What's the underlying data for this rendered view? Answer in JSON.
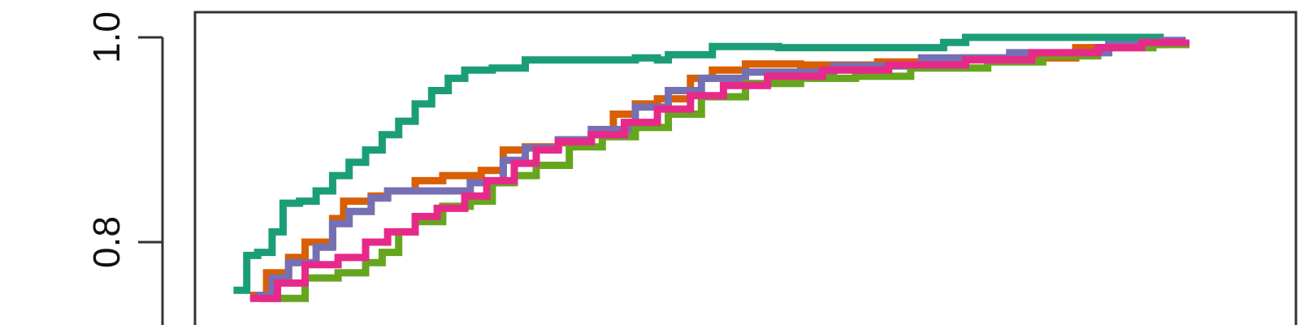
{
  "chart_data": {
    "type": "line",
    "title": "",
    "xlabel": "",
    "ylabel": "",
    "ylim": [
      0.73,
      1.02
    ],
    "xlim": [
      0,
      1
    ],
    "grid": false,
    "y_ticks": [
      {
        "value": 0.8,
        "label": "0.8"
      },
      {
        "value": 1.0,
        "label": "1.0"
      }
    ],
    "series": [
      {
        "color": "#1b9e77",
        "step": true,
        "points": [
          [
            0.035,
            0.753
          ],
          [
            0.047,
            0.787
          ],
          [
            0.057,
            0.79
          ],
          [
            0.07,
            0.81
          ],
          [
            0.08,
            0.838
          ],
          [
            0.095,
            0.84
          ],
          [
            0.11,
            0.85
          ],
          [
            0.125,
            0.865
          ],
          [
            0.14,
            0.878
          ],
          [
            0.155,
            0.89
          ],
          [
            0.17,
            0.905
          ],
          [
            0.185,
            0.918
          ],
          [
            0.2,
            0.935
          ],
          [
            0.215,
            0.948
          ],
          [
            0.23,
            0.96
          ],
          [
            0.245,
            0.968
          ],
          [
            0.27,
            0.97
          ],
          [
            0.3,
            0.978
          ],
          [
            0.4,
            0.98
          ],
          [
            0.42,
            0.978
          ],
          [
            0.43,
            0.983
          ],
          [
            0.47,
            0.991
          ],
          [
            0.53,
            0.99
          ],
          [
            0.68,
            0.995
          ],
          [
            0.7,
            1.0
          ],
          [
            0.75,
            1.0
          ],
          [
            0.88,
            1.0
          ]
        ]
      },
      {
        "color": "#d95f02",
        "step": true,
        "points": [
          [
            0.05,
            0.748
          ],
          [
            0.065,
            0.77
          ],
          [
            0.085,
            0.785
          ],
          [
            0.1,
            0.8
          ],
          [
            0.125,
            0.823
          ],
          [
            0.135,
            0.84
          ],
          [
            0.16,
            0.845
          ],
          [
            0.175,
            0.85
          ],
          [
            0.2,
            0.86
          ],
          [
            0.225,
            0.865
          ],
          [
            0.26,
            0.87
          ],
          [
            0.28,
            0.89
          ],
          [
            0.3,
            0.893
          ],
          [
            0.33,
            0.897
          ],
          [
            0.36,
            0.905
          ],
          [
            0.38,
            0.925
          ],
          [
            0.4,
            0.935
          ],
          [
            0.42,
            0.94
          ],
          [
            0.45,
            0.96
          ],
          [
            0.47,
            0.968
          ],
          [
            0.5,
            0.974
          ],
          [
            0.55,
            0.973
          ],
          [
            0.62,
            0.976
          ],
          [
            0.7,
            0.98
          ],
          [
            0.8,
            0.99
          ],
          [
            0.84,
            0.99
          ],
          [
            0.87,
            0.993
          ],
          [
            0.9,
            0.998
          ]
        ]
      },
      {
        "color": "#7570b3",
        "step": true,
        "points": [
          [
            0.055,
            0.748
          ],
          [
            0.07,
            0.765
          ],
          [
            0.085,
            0.78
          ],
          [
            0.11,
            0.795
          ],
          [
            0.125,
            0.818
          ],
          [
            0.14,
            0.83
          ],
          [
            0.16,
            0.843
          ],
          [
            0.175,
            0.85
          ],
          [
            0.21,
            0.85
          ],
          [
            0.25,
            0.858
          ],
          [
            0.28,
            0.88
          ],
          [
            0.3,
            0.892
          ],
          [
            0.33,
            0.9
          ],
          [
            0.36,
            0.91
          ],
          [
            0.4,
            0.932
          ],
          [
            0.43,
            0.948
          ],
          [
            0.46,
            0.96
          ],
          [
            0.5,
            0.966
          ],
          [
            0.58,
            0.972
          ],
          [
            0.66,
            0.98
          ],
          [
            0.74,
            0.985
          ],
          [
            0.83,
            0.993
          ],
          [
            0.88,
            0.997
          ],
          [
            0.9,
            0.998
          ]
        ]
      },
      {
        "color": "#66a61e",
        "step": true,
        "points": [
          [
            0.06,
            0.745
          ],
          [
            0.085,
            0.745
          ],
          [
            0.1,
            0.765
          ],
          [
            0.13,
            0.77
          ],
          [
            0.155,
            0.78
          ],
          [
            0.17,
            0.79
          ],
          [
            0.185,
            0.81
          ],
          [
            0.2,
            0.82
          ],
          [
            0.225,
            0.835
          ],
          [
            0.25,
            0.84
          ],
          [
            0.27,
            0.858
          ],
          [
            0.29,
            0.865
          ],
          [
            0.31,
            0.875
          ],
          [
            0.34,
            0.893
          ],
          [
            0.37,
            0.903
          ],
          [
            0.4,
            0.912
          ],
          [
            0.43,
            0.925
          ],
          [
            0.46,
            0.942
          ],
          [
            0.5,
            0.955
          ],
          [
            0.55,
            0.96
          ],
          [
            0.6,
            0.962
          ],
          [
            0.65,
            0.97
          ],
          [
            0.72,
            0.976
          ],
          [
            0.77,
            0.982
          ],
          [
            0.82,
            0.99
          ],
          [
            0.87,
            0.993
          ],
          [
            0.9,
            0.995
          ]
        ]
      },
      {
        "color": "#e7298a",
        "step": true,
        "points": [
          [
            0.05,
            0.745
          ],
          [
            0.075,
            0.76
          ],
          [
            0.1,
            0.778
          ],
          [
            0.13,
            0.785
          ],
          [
            0.155,
            0.8
          ],
          [
            0.175,
            0.81
          ],
          [
            0.2,
            0.825
          ],
          [
            0.22,
            0.833
          ],
          [
            0.245,
            0.845
          ],
          [
            0.265,
            0.86
          ],
          [
            0.29,
            0.877
          ],
          [
            0.31,
            0.89
          ],
          [
            0.33,
            0.898
          ],
          [
            0.36,
            0.905
          ],
          [
            0.39,
            0.917
          ],
          [
            0.42,
            0.93
          ],
          [
            0.45,
            0.943
          ],
          [
            0.48,
            0.953
          ],
          [
            0.52,
            0.962
          ],
          [
            0.57,
            0.968
          ],
          [
            0.63,
            0.973
          ],
          [
            0.7,
            0.978
          ],
          [
            0.76,
            0.985
          ],
          [
            0.82,
            0.99
          ],
          [
            0.86,
            0.995
          ],
          [
            0.9,
            0.997
          ]
        ]
      }
    ]
  }
}
